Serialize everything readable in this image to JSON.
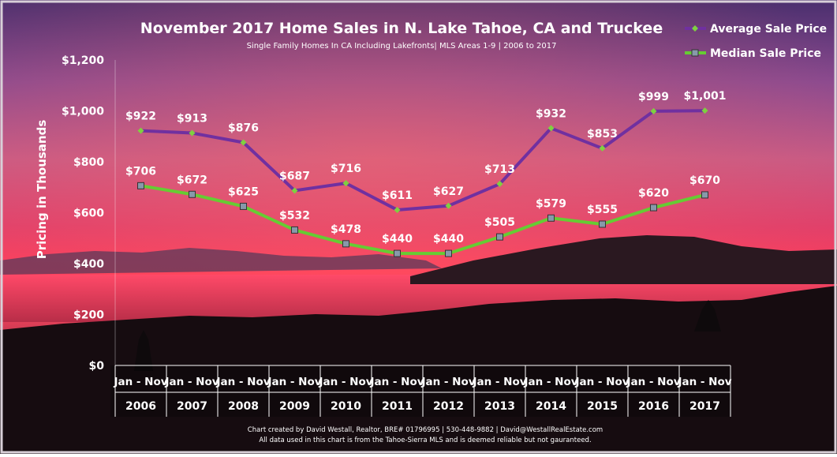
{
  "chart_data": {
    "type": "line",
    "title": "November 2017 Home Sales in N. Lake Tahoe, CA and Truckee",
    "subtitle": "Single Family Homes In  CA Including Lakefronts| MLS Areas 1-9  | 2006 to  2017",
    "ylabel": "Pricing in Thousands",
    "ylim": [
      0,
      1200
    ],
    "y_ticks": [
      "$0",
      "$200",
      "$400",
      "$600",
      "$800",
      "$1,000",
      "$1,200"
    ],
    "y_tick_values": [
      0,
      200,
      400,
      600,
      800,
      1000,
      1200
    ],
    "period_label": "Jan - Nov",
    "categories": [
      "2006",
      "2007",
      "2008",
      "2009",
      "2010",
      "2011",
      "2012",
      "2013",
      "2014",
      "2015",
      "2016",
      "2017"
    ],
    "legend_position": "top-right",
    "series": [
      {
        "name": "Average Sale Price",
        "color": "#7030a0",
        "marker_color": "#7fd040",
        "values": [
          922,
          913,
          876,
          687,
          716,
          611,
          627,
          713,
          932,
          853,
          999,
          1001
        ],
        "labels": [
          "$922",
          "$913",
          "$876",
          "$687",
          "$716",
          "$611",
          "$627",
          "$713",
          "$932",
          "$853",
          "$999",
          "$1,001"
        ]
      },
      {
        "name": "Median Sale Price",
        "color": "#66cc33",
        "marker_color": "#8899aa",
        "values": [
          706,
          672,
          625,
          532,
          478,
          440,
          440,
          505,
          579,
          555,
          620,
          670
        ],
        "labels": [
          "$706",
          "$672",
          "$625",
          "$532",
          "$478",
          "$440",
          "$440",
          "$505",
          "$579",
          "$555",
          "$620",
          "$670"
        ]
      }
    ]
  },
  "footer": {
    "line1": "Chart created by David Westall, Realtor, BRE# 01796995 | 530-448-9882 | David@WestallRealEstate.com",
    "line2": "All data used in this chart is from the Tahoe-Sierra MLS and is deemed reliable but  not gauranteed."
  }
}
